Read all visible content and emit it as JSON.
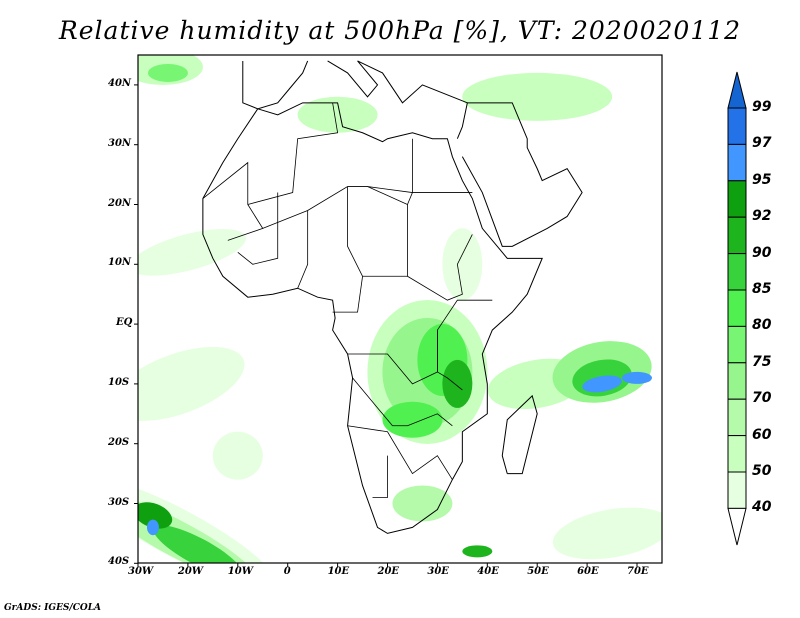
{
  "title": "Relative humidity at 500hPa [%], VT: 2020020112",
  "lat_labels": [
    "40N",
    "30N",
    "20N",
    "10N",
    "EQ",
    "10S",
    "20S",
    "30S",
    "40S"
  ],
  "lon_labels": [
    "30W",
    "20W",
    "10W",
    "0",
    "10E",
    "20E",
    "30E",
    "40E",
    "50E",
    "60E",
    "70E"
  ],
  "colorbar": {
    "levels": [
      "99",
      "97",
      "95",
      "92",
      "90",
      "85",
      "80",
      "75",
      "70",
      "60",
      "50",
      "40"
    ],
    "colors": [
      "#2372e8",
      "#4196ff",
      "#0fa00f",
      "#1eb41e",
      "#37d23c",
      "#50f050",
      "#78f573",
      "#96f58c",
      "#b4faaa",
      "#c8ffbe",
      "#e6ffe1"
    ],
    "over_color": "#1464d2",
    "under_color": "#ffffff"
  },
  "credit": "GrADS: IGES/COLA"
}
